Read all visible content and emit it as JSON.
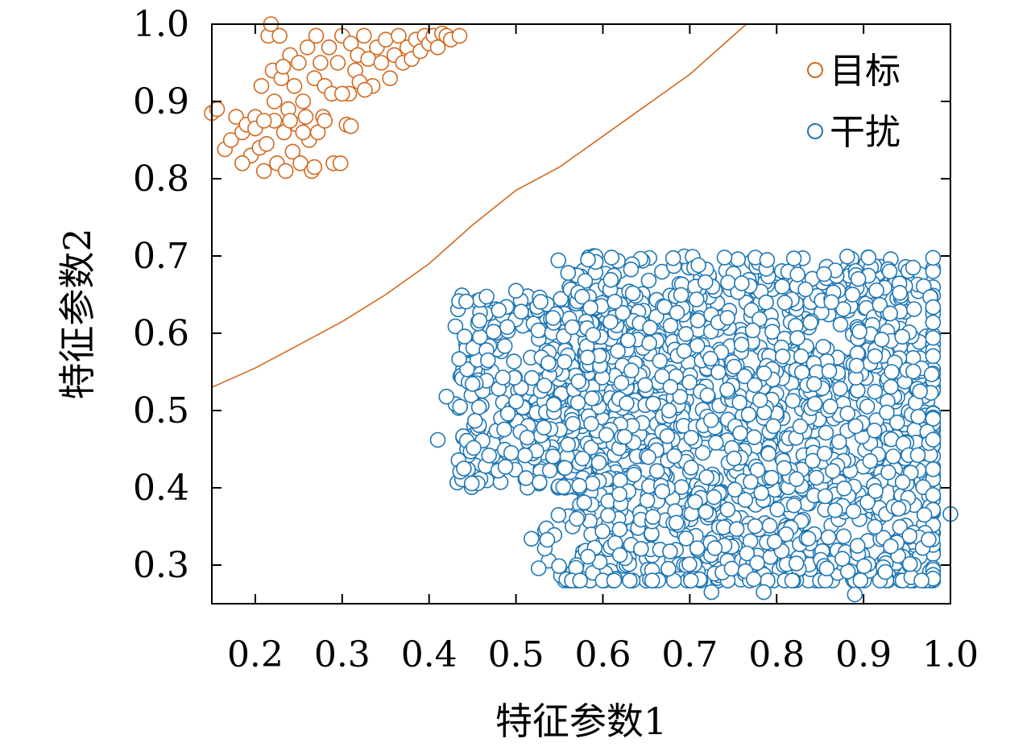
{
  "chart_data": {
    "type": "scatter",
    "xlabel": "特征参数1",
    "ylabel": "特征参数2",
    "xlim": [
      0.15,
      1.0
    ],
    "ylim": [
      0.25,
      1.0
    ],
    "xticks": [
      "0.2",
      "0.3",
      "0.4",
      "0.5",
      "0.6",
      "0.7",
      "0.8",
      "0.9",
      "1.0"
    ],
    "yticks": [
      "0.3",
      "0.4",
      "0.5",
      "0.6",
      "0.7",
      "0.8",
      "0.9",
      "1.0"
    ],
    "grid": false,
    "legend_position": "top-right",
    "series": [
      {
        "name": "目标",
        "color": "#d2691e",
        "marker": "open-circle",
        "points": [
          [
            0.15,
            0.885
          ],
          [
            0.156,
            0.89
          ],
          [
            0.165,
            0.838
          ],
          [
            0.172,
            0.85
          ],
          [
            0.178,
            0.88
          ],
          [
            0.185,
            0.86
          ],
          [
            0.19,
            0.87
          ],
          [
            0.195,
            0.83
          ],
          [
            0.2,
            0.88
          ],
          [
            0.205,
            0.84
          ],
          [
            0.207,
            0.92
          ],
          [
            0.21,
            0.81
          ],
          [
            0.213,
            0.845
          ],
          [
            0.215,
            0.985
          ],
          [
            0.218,
            1.0
          ],
          [
            0.22,
            0.94
          ],
          [
            0.222,
            0.875
          ],
          [
            0.225,
            0.82
          ],
          [
            0.228,
            0.985
          ],
          [
            0.23,
            0.93
          ],
          [
            0.233,
            0.86
          ],
          [
            0.235,
            0.81
          ],
          [
            0.238,
            0.89
          ],
          [
            0.24,
            0.96
          ],
          [
            0.243,
            0.835
          ],
          [
            0.245,
            0.92
          ],
          [
            0.248,
            0.87
          ],
          [
            0.25,
            0.95
          ],
          [
            0.252,
            0.82
          ],
          [
            0.255,
            0.9
          ],
          [
            0.258,
            0.88
          ],
          [
            0.26,
            0.97
          ],
          [
            0.262,
            0.85
          ],
          [
            0.265,
            0.81
          ],
          [
            0.268,
            0.93
          ],
          [
            0.27,
            0.985
          ],
          [
            0.272,
            0.86
          ],
          [
            0.275,
            0.95
          ],
          [
            0.278,
            0.88
          ],
          [
            0.28,
            0.92
          ],
          [
            0.285,
            0.97
          ],
          [
            0.288,
            0.91
          ],
          [
            0.29,
            0.82
          ],
          [
            0.295,
            0.95
          ],
          [
            0.298,
            0.82
          ],
          [
            0.3,
            0.985
          ],
          [
            0.305,
            0.87
          ],
          [
            0.308,
            0.91
          ],
          [
            0.31,
            0.975
          ],
          [
            0.315,
            0.94
          ],
          [
            0.318,
            0.96
          ],
          [
            0.32,
            0.925
          ],
          [
            0.325,
            0.985
          ],
          [
            0.33,
            0.955
          ],
          [
            0.335,
            0.92
          ],
          [
            0.34,
            0.97
          ],
          [
            0.345,
            0.95
          ],
          [
            0.35,
            0.98
          ],
          [
            0.355,
            0.93
          ],
          [
            0.36,
            0.96
          ],
          [
            0.365,
            0.985
          ],
          [
            0.37,
            0.95
          ],
          [
            0.375,
            0.97
          ],
          [
            0.38,
            0.955
          ],
          [
            0.385,
            0.98
          ],
          [
            0.39,
            0.965
          ],
          [
            0.395,
            0.985
          ],
          [
            0.4,
            0.975
          ],
          [
            0.405,
            0.985
          ],
          [
            0.41,
            0.97
          ],
          [
            0.415,
            0.988
          ],
          [
            0.42,
            0.985
          ],
          [
            0.425,
            0.98
          ],
          [
            0.435,
            0.985
          ],
          [
            0.268,
            0.815
          ],
          [
            0.255,
            0.86
          ],
          [
            0.222,
            0.9
          ],
          [
            0.24,
            0.875
          ],
          [
            0.2,
            0.865
          ],
          [
            0.185,
            0.82
          ],
          [
            0.21,
            0.875
          ],
          [
            0.232,
            0.945
          ],
          [
            0.28,
            0.875
          ],
          [
            0.3,
            0.91
          ],
          [
            0.31,
            0.868
          ],
          [
            0.326,
            0.915
          ]
        ]
      },
      {
        "name": "干扰",
        "color": "#1f77b4",
        "marker": "open-circle",
        "cluster": {
          "xrange": [
            0.41,
            1.0
          ],
          "yrange": [
            0.265,
            0.7
          ],
          "count": 1900,
          "seed": 7
        },
        "points": [
          [
            1.0,
            0.366
          ],
          [
            0.725,
            0.265
          ],
          [
            0.785,
            0.265
          ],
          [
            0.89,
            0.262
          ],
          [
            0.61,
            0.698
          ],
          [
            0.74,
            0.698
          ],
          [
            0.49,
            0.608
          ],
          [
            0.5,
            0.655
          ],
          [
            0.41,
            0.462
          ],
          [
            0.42,
            0.518
          ],
          [
            0.44,
            0.425
          ],
          [
            0.56,
            0.678
          ],
          [
            0.93,
            0.68
          ],
          [
            0.975,
            0.333
          ],
          [
            0.97,
            0.365
          ],
          [
            0.57,
            0.36
          ]
        ]
      }
    ],
    "decision_boundary": {
      "color": "#d2691e",
      "points": [
        [
          0.15,
          0.53
        ],
        [
          0.2,
          0.555
        ],
        [
          0.25,
          0.585
        ],
        [
          0.3,
          0.615
        ],
        [
          0.35,
          0.65
        ],
        [
          0.4,
          0.69
        ],
        [
          0.45,
          0.74
        ],
        [
          0.5,
          0.785
        ],
        [
          0.55,
          0.815
        ],
        [
          0.6,
          0.855
        ],
        [
          0.65,
          0.895
        ],
        [
          0.7,
          0.935
        ],
        [
          0.75,
          0.985
        ],
        [
          0.765,
          1.0
        ]
      ]
    },
    "legend": [
      {
        "label": "目标",
        "color": "#d2691e"
      },
      {
        "label": "干扰",
        "color": "#1f77b4"
      }
    ]
  }
}
